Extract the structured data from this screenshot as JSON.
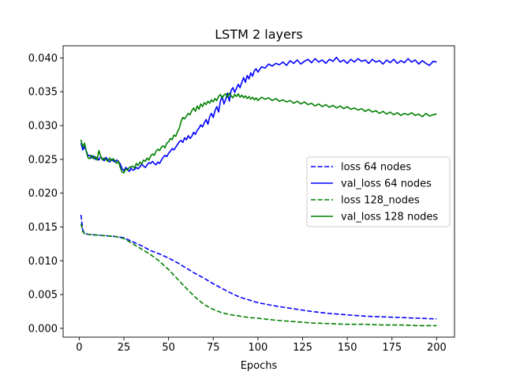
{
  "chart_data": {
    "type": "line",
    "title": "LSTM 2 layers",
    "xlabel": "Epochs",
    "ylabel": "",
    "xlim": [
      -9,
      210
    ],
    "ylim": [
      -0.0013,
      0.0418
    ],
    "xticks": [
      0,
      25,
      50,
      75,
      100,
      125,
      150,
      175,
      200
    ],
    "xtick_labels": [
      "0",
      "25",
      "50",
      "75",
      "100",
      "125",
      "150",
      "175",
      "200"
    ],
    "yticks": [
      0.0,
      0.005,
      0.01,
      0.015,
      0.02,
      0.025,
      0.03,
      0.035,
      0.04
    ],
    "ytick_labels": [
      "0.000",
      "0.005",
      "0.010",
      "0.015",
      "0.020",
      "0.025",
      "0.030",
      "0.035",
      "0.040"
    ],
    "grid": false,
    "legend_position": "center-right",
    "series": [
      {
        "name": "loss 64 nodes",
        "color": "#0000ff",
        "style": "dashed",
        "x": [
          1,
          2,
          3,
          5,
          10,
          15,
          20,
          25,
          30,
          35,
          40,
          45,
          50,
          55,
          60,
          65,
          70,
          75,
          80,
          85,
          90,
          95,
          100,
          110,
          120,
          130,
          140,
          150,
          160,
          170,
          180,
          190,
          200
        ],
        "y": [
          0.0168,
          0.0145,
          0.0141,
          0.0139,
          0.0138,
          0.0137,
          0.0136,
          0.0134,
          0.0128,
          0.0122,
          0.0115,
          0.011,
          0.0104,
          0.0097,
          0.0089,
          0.0081,
          0.0074,
          0.0066,
          0.0059,
          0.0052,
          0.0046,
          0.0042,
          0.0038,
          0.0033,
          0.0029,
          0.0025,
          0.0022,
          0.002,
          0.0018,
          0.0017,
          0.0016,
          0.0015,
          0.0014
        ]
      },
      {
        "name": "val_loss 64 nodes",
        "color": "#0000ff",
        "style": "solid",
        "x": [
          1,
          2,
          3,
          4,
          5,
          6,
          7,
          8,
          9,
          10,
          11,
          12,
          13,
          14,
          15,
          16,
          17,
          18,
          19,
          20,
          21,
          22,
          23,
          24,
          25,
          26,
          27,
          28,
          29,
          30,
          31,
          32,
          33,
          34,
          35,
          36,
          37,
          38,
          39,
          40,
          41,
          42,
          43,
          44,
          45,
          46,
          47,
          48,
          49,
          50,
          51,
          52,
          53,
          54,
          55,
          56,
          57,
          58,
          59,
          60,
          61,
          62,
          63,
          64,
          65,
          66,
          67,
          68,
          69,
          70,
          71,
          72,
          73,
          74,
          75,
          76,
          77,
          78,
          79,
          80,
          81,
          82,
          83,
          84,
          85,
          86,
          87,
          88,
          89,
          90,
          91,
          92,
          93,
          94,
          95,
          96,
          97,
          98,
          99,
          100,
          102,
          104,
          106,
          108,
          110,
          112,
          114,
          116,
          118,
          120,
          122,
          124,
          126,
          128,
          130,
          132,
          134,
          136,
          138,
          140,
          142,
          144,
          146,
          148,
          150,
          152,
          154,
          156,
          158,
          160,
          162,
          164,
          166,
          168,
          170,
          172,
          174,
          176,
          178,
          180,
          182,
          184,
          186,
          188,
          190,
          192,
          194,
          196,
          198,
          200
        ],
        "y": [
          0.0274,
          0.0264,
          0.0269,
          0.0262,
          0.0255,
          0.0256,
          0.0252,
          0.0255,
          0.025,
          0.0253,
          0.0249,
          0.0254,
          0.0251,
          0.0248,
          0.0253,
          0.0249,
          0.0246,
          0.025,
          0.0248,
          0.0246,
          0.0249,
          0.0247,
          0.0243,
          0.0236,
          0.0233,
          0.0238,
          0.0236,
          0.0232,
          0.0237,
          0.0234,
          0.0235,
          0.0238,
          0.0236,
          0.0239,
          0.0243,
          0.024,
          0.0238,
          0.0242,
          0.0245,
          0.0244,
          0.0247,
          0.0244,
          0.0242,
          0.0246,
          0.0244,
          0.0249,
          0.0253,
          0.0256,
          0.0254,
          0.0259,
          0.0262,
          0.0266,
          0.0264,
          0.0268,
          0.0272,
          0.0276,
          0.0278,
          0.0275,
          0.0282,
          0.0279,
          0.0285,
          0.0281,
          0.0284,
          0.029,
          0.0287,
          0.0293,
          0.0296,
          0.0301,
          0.0298,
          0.0304,
          0.0309,
          0.0302,
          0.0313,
          0.0318,
          0.0312,
          0.0322,
          0.0328,
          0.032,
          0.0336,
          0.0343,
          0.0332,
          0.0339,
          0.0348,
          0.0336,
          0.0352,
          0.0356,
          0.0349,
          0.0355,
          0.0361,
          0.0356,
          0.0364,
          0.0371,
          0.0364,
          0.0374,
          0.0369,
          0.0378,
          0.0373,
          0.0381,
          0.0384,
          0.0379,
          0.0387,
          0.0385,
          0.0391,
          0.0388,
          0.0392,
          0.039,
          0.0394,
          0.0389,
          0.0396,
          0.0392,
          0.0397,
          0.0391,
          0.0395,
          0.0398,
          0.0393,
          0.0399,
          0.0394,
          0.0397,
          0.0392,
          0.0398,
          0.0395,
          0.0401,
          0.0394,
          0.0397,
          0.0392,
          0.0398,
          0.0394,
          0.0399,
          0.0395,
          0.0397,
          0.0392,
          0.0398,
          0.0394,
          0.0396,
          0.0391,
          0.0397,
          0.0393,
          0.0398,
          0.0392,
          0.0396,
          0.0393,
          0.0399,
          0.0394,
          0.0397,
          0.0391,
          0.0396,
          0.0392,
          0.0389,
          0.0395,
          0.0394
        ]
      },
      {
        "name": "loss 128_nodes",
        "color": "#008000",
        "style": "dashed",
        "x": [
          1,
          2,
          3,
          5,
          10,
          15,
          20,
          25,
          30,
          35,
          40,
          45,
          50,
          55,
          60,
          65,
          70,
          75,
          80,
          85,
          90,
          95,
          100,
          110,
          120,
          130,
          140,
          150,
          160,
          170,
          180,
          190,
          200
        ],
        "y": [
          0.0155,
          0.0143,
          0.014,
          0.0139,
          0.0138,
          0.0137,
          0.0136,
          0.0133,
          0.0125,
          0.0117,
          0.0109,
          0.0099,
          0.0087,
          0.0073,
          0.0059,
          0.0046,
          0.0035,
          0.0028,
          0.0023,
          0.002,
          0.0018,
          0.0016,
          0.0015,
          0.0012,
          0.001,
          0.0008,
          0.0007,
          0.0006,
          0.0006,
          0.0005,
          0.0005,
          0.0004,
          0.0004
        ]
      },
      {
        "name": "val_loss 128 nodes",
        "color": "#008000",
        "style": "solid",
        "x": [
          1,
          2,
          3,
          4,
          5,
          6,
          7,
          8,
          9,
          10,
          11,
          12,
          13,
          14,
          15,
          16,
          17,
          18,
          19,
          20,
          21,
          22,
          23,
          24,
          25,
          26,
          27,
          28,
          29,
          30,
          31,
          32,
          33,
          34,
          35,
          36,
          37,
          38,
          39,
          40,
          41,
          42,
          43,
          44,
          45,
          46,
          47,
          48,
          49,
          50,
          51,
          52,
          53,
          54,
          55,
          56,
          57,
          58,
          59,
          60,
          61,
          62,
          63,
          64,
          65,
          66,
          67,
          68,
          69,
          70,
          71,
          72,
          73,
          74,
          75,
          76,
          77,
          78,
          79,
          80,
          81,
          82,
          83,
          84,
          85,
          86,
          87,
          88,
          89,
          90,
          91,
          92,
          93,
          94,
          95,
          96,
          97,
          98,
          99,
          100,
          102,
          104,
          106,
          108,
          110,
          112,
          114,
          116,
          118,
          120,
          122,
          124,
          126,
          128,
          130,
          132,
          134,
          136,
          138,
          140,
          142,
          144,
          146,
          148,
          150,
          152,
          154,
          156,
          158,
          160,
          162,
          164,
          166,
          168,
          170,
          172,
          174,
          176,
          178,
          180,
          182,
          184,
          186,
          188,
          190,
          192,
          194,
          196,
          198,
          200
        ],
        "y": [
          0.0279,
          0.0268,
          0.0274,
          0.0261,
          0.0252,
          0.0251,
          0.0256,
          0.0251,
          0.0254,
          0.0249,
          0.0263,
          0.0255,
          0.0249,
          0.0252,
          0.025,
          0.0247,
          0.0252,
          0.0248,
          0.0251,
          0.0248,
          0.0244,
          0.0247,
          0.0238,
          0.0231,
          0.023,
          0.0236,
          0.0234,
          0.0238,
          0.0239,
          0.024,
          0.0237,
          0.0244,
          0.0241,
          0.0246,
          0.0243,
          0.0249,
          0.0247,
          0.0252,
          0.0249,
          0.0255,
          0.0258,
          0.0256,
          0.0262,
          0.0265,
          0.0263,
          0.0268,
          0.027,
          0.0267,
          0.0274,
          0.0276,
          0.0281,
          0.0279,
          0.0286,
          0.0284,
          0.0291,
          0.0296,
          0.0306,
          0.0312,
          0.031,
          0.0314,
          0.0318,
          0.0316,
          0.0322,
          0.0326,
          0.0321,
          0.0329,
          0.0324,
          0.0332,
          0.0328,
          0.0334,
          0.0331,
          0.0336,
          0.0333,
          0.0338,
          0.0335,
          0.034,
          0.0337,
          0.0343,
          0.0346,
          0.0341,
          0.0345,
          0.0347,
          0.0342,
          0.0348,
          0.0344,
          0.0341,
          0.0346,
          0.0343,
          0.0347,
          0.0342,
          0.0345,
          0.0341,
          0.0344,
          0.034,
          0.0343,
          0.0339,
          0.0342,
          0.0338,
          0.0341,
          0.0337,
          0.0342,
          0.0339,
          0.0341,
          0.0337,
          0.034,
          0.0336,
          0.0338,
          0.0335,
          0.0337,
          0.0333,
          0.0336,
          0.0332,
          0.0335,
          0.0331,
          0.0333,
          0.0329,
          0.0332,
          0.0328,
          0.0331,
          0.0327,
          0.033,
          0.0326,
          0.0329,
          0.0325,
          0.0328,
          0.0324,
          0.0326,
          0.0323,
          0.0325,
          0.0321,
          0.0324,
          0.032,
          0.0322,
          0.0318,
          0.0321,
          0.0317,
          0.032,
          0.0316,
          0.0319,
          0.0315,
          0.0318,
          0.0316,
          0.0319,
          0.0315,
          0.0317,
          0.0313,
          0.0318,
          0.0314,
          0.0316,
          0.0317
        ]
      }
    ]
  }
}
